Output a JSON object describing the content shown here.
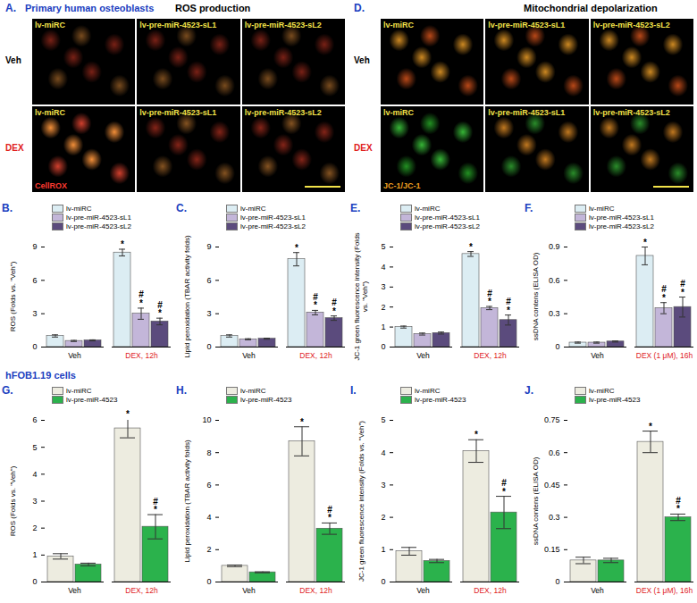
{
  "figure": {
    "cell_type": "Primary human osteoblasts",
    "section_label": "hFOB1.19 cells",
    "image_panels": [
      {
        "panel": "A.",
        "title": "ROS production",
        "columns": [
          "lv-miRC",
          "lv-pre-miR-4523-sL1",
          "lv-pre-miR-4523-sL2"
        ],
        "rows": [
          "Veh",
          "DEX"
        ],
        "stain": "CellROX"
      },
      {
        "panel": "D.",
        "title": "Mitochondrial depolarization",
        "columns": [
          "lv-miRC",
          "lv-pre-miR-4523-sL1",
          "lv-pre-miR-4523-sL2"
        ],
        "rows": [
          "Veh",
          "DEX"
        ],
        "stain": "JC-1/JC-1"
      }
    ]
  },
  "chart_data": [
    {
      "panel": "B.",
      "type": "bar",
      "ylabel": "ROS (Folds vs. \"Veh\")",
      "categories": [
        "Veh",
        "DEX, 12h"
      ],
      "series": [
        {
          "name": "lv-miRC",
          "color": "#dcedf3",
          "values": [
            1.0,
            8.5
          ],
          "errors": [
            0.1,
            0.3
          ],
          "significance": [
            [],
            [
              "*"
            ]
          ]
        },
        {
          "name": "lv-pre-miR-4523-sL1",
          "color": "#c3b6d9",
          "values": [
            0.55,
            3.0
          ],
          "errors": [
            0.05,
            0.5
          ],
          "significance": [
            [],
            [
              "#",
              "*"
            ]
          ]
        },
        {
          "name": "lv-pre-miR-4523-sL2",
          "color": "#5b4b7d",
          "values": [
            0.6,
            2.3
          ],
          "errors": [
            0.05,
            0.3
          ],
          "significance": [
            [],
            [
              "#",
              "*"
            ]
          ]
        }
      ],
      "ylim": [
        0,
        9
      ],
      "yticks": [
        0,
        3,
        6,
        9
      ],
      "legend": "top-left",
      "grid": false
    },
    {
      "panel": "C.",
      "type": "bar",
      "ylabel": "Lipid peroxidation (TBAR activity folds)",
      "categories": [
        "Veh",
        "DEX, 12h"
      ],
      "series": [
        {
          "name": "lv-miRC",
          "color": "#dcedf3",
          "values": [
            1.0,
            7.9
          ],
          "errors": [
            0.1,
            0.6
          ],
          "significance": [
            [],
            [
              "*"
            ]
          ]
        },
        {
          "name": "lv-pre-miR-4523-sL1",
          "color": "#c3b6d9",
          "values": [
            0.7,
            3.1
          ],
          "errors": [
            0.05,
            0.2
          ],
          "significance": [
            [],
            [
              "#",
              "*"
            ]
          ]
        },
        {
          "name": "lv-pre-miR-4523-sL2",
          "color": "#5b4b7d",
          "values": [
            0.75,
            2.6
          ],
          "errors": [
            0.05,
            0.2
          ],
          "significance": [
            [],
            [
              "#",
              "*"
            ]
          ]
        }
      ],
      "ylim": [
        0,
        9
      ],
      "yticks": [
        0,
        3,
        6,
        9
      ],
      "legend": "top-left",
      "grid": false
    },
    {
      "panel": "E.",
      "type": "bar",
      "ylabel": "JC-1 green fluorescence intensity (Folds vs. \"Veh\")",
      "categories": [
        "Veh",
        "DEX, 12h"
      ],
      "series": [
        {
          "name": "lv-miRC",
          "color": "#dcedf3",
          "values": [
            1.0,
            4.65
          ],
          "errors": [
            0.05,
            0.12
          ],
          "significance": [
            [],
            [
              "*"
            ]
          ]
        },
        {
          "name": "lv-pre-miR-4523-sL1",
          "color": "#c3b6d9",
          "values": [
            0.65,
            1.95
          ],
          "errors": [
            0.05,
            0.08
          ],
          "significance": [
            [],
            [
              "#",
              "*"
            ]
          ]
        },
        {
          "name": "lv-pre-miR-4523-sL2",
          "color": "#5b4b7d",
          "values": [
            0.7,
            1.35
          ],
          "errors": [
            0.05,
            0.25
          ],
          "significance": [
            [],
            [
              "#",
              "*"
            ]
          ]
        }
      ],
      "ylim": [
        0,
        5
      ],
      "yticks": [
        0,
        1,
        2,
        3,
        4,
        5
      ],
      "legend": "top-left",
      "grid": false
    },
    {
      "panel": "F.",
      "type": "bar",
      "ylabel": "ssDNA contens (ELISA OD)",
      "categories": [
        "Veh",
        "DEX (1 μM), 16h"
      ],
      "series": [
        {
          "name": "lv-miRC",
          "color": "#dcedf3",
          "values": [
            0.04,
            0.82
          ],
          "errors": [
            0.005,
            0.08
          ],
          "significance": [
            [],
            [
              "*"
            ]
          ]
        },
        {
          "name": "lv-pre-miR-4523-sL1",
          "color": "#c3b6d9",
          "values": [
            0.04,
            0.35
          ],
          "errors": [
            0.005,
            0.05
          ],
          "significance": [
            [],
            [
              "#",
              "*"
            ]
          ]
        },
        {
          "name": "lv-pre-miR-4523-sL2",
          "color": "#5b4b7d",
          "values": [
            0.05,
            0.36
          ],
          "errors": [
            0.005,
            0.09
          ],
          "significance": [
            [],
            [
              "#",
              "*"
            ]
          ]
        }
      ],
      "ylim": [
        0,
        0.9
      ],
      "yticks": [
        0,
        0.3,
        0.6,
        0.9
      ],
      "legend": "top-left",
      "grid": false
    },
    {
      "panel": "G.",
      "type": "bar",
      "ylabel": "ROS (Folds vs. \"Veh\")",
      "categories": [
        "Veh",
        "DEX, 12h"
      ],
      "series": [
        {
          "name": "lv-miRC",
          "color": "#edece0",
          "values": [
            0.95,
            5.7
          ],
          "errors": [
            0.1,
            0.35
          ],
          "significance": [
            [],
            [
              "*"
            ]
          ]
        },
        {
          "name": "lv-pre-miR-4523",
          "color": "#2bb24c",
          "values": [
            0.65,
            2.05
          ],
          "errors": [
            0.05,
            0.45
          ],
          "significance": [
            [],
            [
              "#",
              "*"
            ]
          ]
        }
      ],
      "ylim": [
        0,
        6
      ],
      "yticks": [
        0,
        1,
        2,
        3,
        4,
        5,
        6
      ],
      "legend": "top-left",
      "grid": false
    },
    {
      "panel": "H.",
      "type": "bar",
      "ylabel": "Lipid peroxidation (TBAR activity folds)",
      "categories": [
        "Veh",
        "DEX, 12h"
      ],
      "series": [
        {
          "name": "lv-miRC",
          "color": "#edece0",
          "values": [
            1.0,
            8.7
          ],
          "errors": [
            0.05,
            0.9
          ],
          "significance": [
            [],
            [
              "*"
            ]
          ]
        },
        {
          "name": "lv-pre-miR-4523",
          "color": "#2bb24c",
          "values": [
            0.6,
            3.3
          ],
          "errors": [
            0.03,
            0.35
          ],
          "significance": [
            [],
            [
              "#",
              "*"
            ]
          ]
        }
      ],
      "ylim": [
        0,
        10
      ],
      "yticks": [
        0,
        2,
        4,
        6,
        8,
        10
      ],
      "legend": "top-left",
      "grid": false
    },
    {
      "panel": "I.",
      "type": "bar",
      "ylabel": "JC-1 green fluorescence intensity (Folds vs. \"Veh\")",
      "categories": [
        "Veh",
        "DEX, 12h"
      ],
      "series": [
        {
          "name": "lv-miRC",
          "color": "#edece0",
          "values": [
            0.95,
            4.05
          ],
          "errors": [
            0.12,
            0.35
          ],
          "significance": [
            [],
            [
              "*"
            ]
          ]
        },
        {
          "name": "lv-pre-miR-4523",
          "color": "#2bb24c",
          "values": [
            0.65,
            2.15
          ],
          "errors": [
            0.05,
            0.5
          ],
          "significance": [
            [],
            [
              "#",
              "*"
            ]
          ]
        }
      ],
      "ylim": [
        0,
        5
      ],
      "yticks": [
        0,
        1,
        2,
        3,
        4,
        5
      ],
      "legend": "top-left",
      "grid": false
    },
    {
      "panel": "J.",
      "type": "bar",
      "ylabel": "ssDNA contens (ELISA OD)",
      "categories": [
        "Veh",
        "DEX (1 μM), 16h"
      ],
      "series": [
        {
          "name": "lv-miRC",
          "color": "#edece0",
          "values": [
            0.1,
            0.65
          ],
          "errors": [
            0.015,
            0.05
          ],
          "significance": [
            [],
            [
              "*"
            ]
          ]
        },
        {
          "name": "lv-pre-miR-4523",
          "color": "#2bb24c",
          "values": [
            0.1,
            0.3
          ],
          "errors": [
            0.01,
            0.015
          ],
          "significance": [
            [],
            [
              "#",
              "*"
            ]
          ]
        }
      ],
      "ylim": [
        0,
        0.75
      ],
      "yticks": [
        0,
        0.15,
        0.3,
        0.45,
        0.6,
        0.75
      ],
      "legend": "top-left",
      "grid": false
    }
  ]
}
